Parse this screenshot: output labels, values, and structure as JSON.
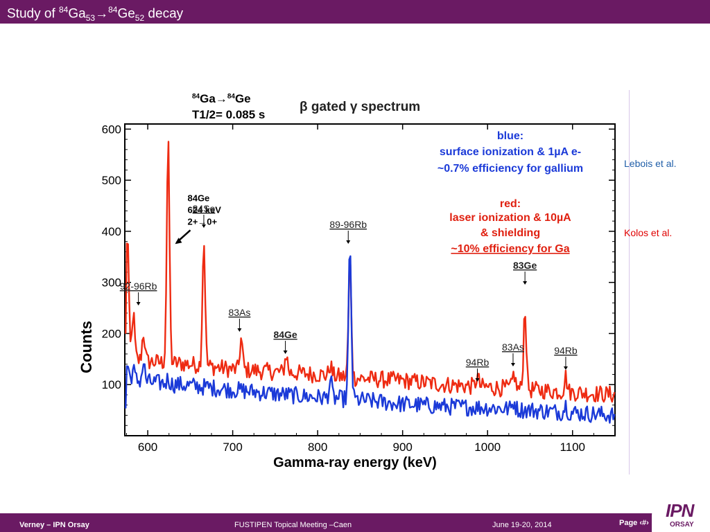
{
  "slide": {
    "title": {
      "prefix": "Study of ",
      "sup1": "84",
      "el1": "Ga",
      "sub1": "53",
      "arrow": "→",
      "sup2": "84",
      "el2": "Ge",
      "sub2": "52",
      "suffix": " decay"
    },
    "side_labels": {
      "blue": "Lebois et al.",
      "red": "Kolos et al."
    },
    "footer": {
      "author": "Verney – IPN Orsay",
      "meeting": "FUSTIPEN Topical Meeting –Caen",
      "date": "June 19-20, 2014",
      "page": "Page ‹#›"
    },
    "logo": {
      "main": "IPN",
      "sub": "ORSAY"
    }
  },
  "colors": {
    "bar": "#6a1a63",
    "red_series": "#ee2b12",
    "blue_series": "#1b3ad8",
    "side_blue": "#1f5ea8",
    "side_red": "#e00000"
  },
  "chart_data": {
    "type": "line",
    "header": {
      "decay_sup1": "84",
      "decay_el1": "Ga",
      "decay_arrow": "→",
      "decay_sup2": "84",
      "decay_el2": "Ge",
      "halflife": "T1/2= 0.085 s",
      "title": "β gated γ spectrum"
    },
    "xlabel": "Gamma-ray energy (keV)",
    "ylabel": "Counts",
    "xlim": [
      573,
      1150
    ],
    "ylim": [
      0,
      610
    ],
    "xticks": [
      600,
      700,
      800,
      900,
      1000,
      1100
    ],
    "yticks": [
      100,
      200,
      300,
      400,
      500,
      600
    ],
    "grid": false,
    "legend": {
      "blue": [
        "blue:",
        "surface ionization & 1µA e-",
        "~0.7% efficiency for gallium"
      ],
      "red": [
        "red:",
        "laser ionization & 10µA",
        "& shielding",
        "~10% efficiency for Ga"
      ]
    },
    "series": [
      {
        "color": "red",
        "baseline": [
          [
            575,
            150
          ],
          [
            600,
            145
          ],
          [
            650,
            140
          ],
          [
            700,
            130
          ],
          [
            750,
            125
          ],
          [
            800,
            120
          ],
          [
            850,
            112
          ],
          [
            900,
            108
          ],
          [
            950,
            100
          ],
          [
            1000,
            95
          ],
          [
            1050,
            90
          ],
          [
            1100,
            85
          ],
          [
            1150,
            80
          ]
        ],
        "peaks": [
          [
            576,
            250
          ],
          [
            583,
            90
          ],
          [
            595,
            55
          ],
          [
            624,
            430
          ],
          [
            666,
            245
          ],
          [
            710,
            60
          ],
          [
            763,
            35
          ],
          [
            815,
            20
          ],
          [
            838,
            230
          ],
          [
            988,
            20
          ],
          [
            1031,
            30
          ],
          [
            1044,
            160
          ],
          [
            1092,
            30
          ]
        ]
      },
      {
        "color": "blue",
        "baseline": [
          [
            575,
            110
          ],
          [
            600,
            105
          ],
          [
            650,
            98
          ],
          [
            700,
            90
          ],
          [
            750,
            82
          ],
          [
            800,
            75
          ],
          [
            850,
            70
          ],
          [
            900,
            62
          ],
          [
            950,
            57
          ],
          [
            1000,
            55
          ],
          [
            1050,
            50
          ],
          [
            1100,
            45
          ],
          [
            1150,
            40
          ]
        ],
        "peaks": [
          [
            576,
            30
          ],
          [
            583,
            20
          ],
          [
            595,
            35
          ],
          [
            624,
            10
          ],
          [
            815,
            35
          ],
          [
            838,
            295
          ],
          [
            1031,
            15
          ],
          [
            1092,
            15
          ]
        ]
      }
    ],
    "annotations": [
      {
        "lines": [
          "84Ge",
          "624 keV",
          "2+→0+"
        ],
        "x": 624,
        "y": 470
      },
      {
        "text": "84Se",
        "x": 666
      },
      {
        "text": "92-96Rb",
        "x": 589
      },
      {
        "text": "83As",
        "x": 708
      },
      {
        "text": "84Ge",
        "x": 762
      },
      {
        "text": "89-96Rb",
        "x": 836
      },
      {
        "text": "83Ge",
        "x": 1044
      },
      {
        "text": "83As",
        "x": 1030
      },
      {
        "text": "94Rb",
        "x": 988
      },
      {
        "text": "94Rb",
        "x": 1092
      }
    ]
  }
}
